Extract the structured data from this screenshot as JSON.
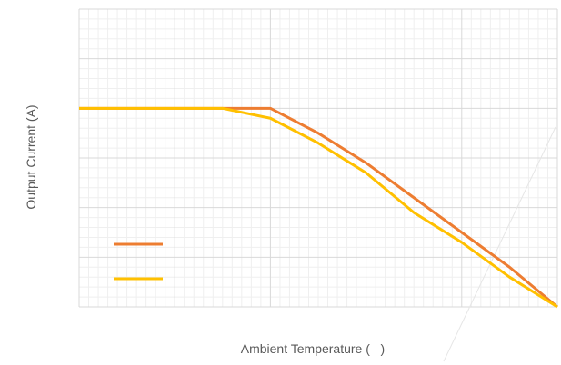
{
  "chart_data": {
    "type": "line",
    "title": "",
    "xlabel": "Ambient Temperature (   )",
    "ylabel": "Output Current (A)",
    "xlim": [
      0,
      100
    ],
    "ylim": [
      0,
      6
    ],
    "grid": true,
    "legend": "lower-left",
    "series": [
      {
        "color": "#ED7D31",
        "points": [
          [
            0,
            4
          ],
          [
            40,
            4
          ],
          [
            50,
            3.5
          ],
          [
            60,
            2.9
          ],
          [
            70,
            2.2
          ],
          [
            80,
            1.5
          ],
          [
            90,
            0.8
          ],
          [
            100,
            0
          ]
        ]
      },
      {
        "color": "#FFC000",
        "points": [
          [
            0,
            4
          ],
          [
            30,
            4
          ],
          [
            40,
            3.8
          ],
          [
            50,
            3.3
          ],
          [
            60,
            2.7
          ],
          [
            70,
            1.9
          ],
          [
            80,
            1.3
          ],
          [
            90,
            0.6
          ],
          [
            100,
            0
          ]
        ]
      }
    ]
  }
}
